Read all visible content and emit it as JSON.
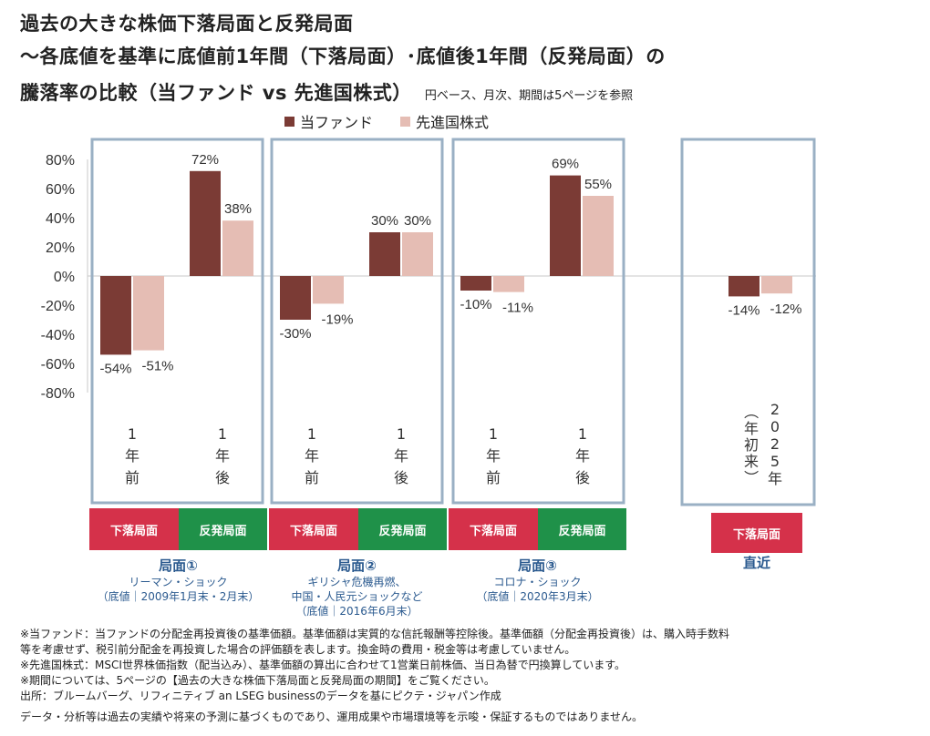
{
  "title": {
    "line1": "過去の大きな株価下落局面と反発局面",
    "line2": "～各底値を基準に底値前1年間（下落局面）･底値後1年間（反発局面）の",
    "line3": "騰落率の比較（当ファンド vs 先進国株式）",
    "note": "円ベース、月次、期間は5ページを参照"
  },
  "legend": {
    "fund": "当ファンド",
    "index": "先進国株式"
  },
  "colors": {
    "fund": "#7b3b35",
    "index": "#e5bdb4",
    "frame": "#9ab0c4",
    "down": "#d5314a",
    "up": "#1f9149",
    "phase_text": "#2b5a8f"
  },
  "chart_data": {
    "type": "bar",
    "ylim": [
      -80,
      80
    ],
    "y_ticks": [
      "80%",
      "60%",
      "40%",
      "20%",
      "0%",
      "-20%",
      "-40%",
      "-60%",
      "-80%"
    ],
    "series": [
      {
        "name": "当ファンド",
        "values": [
          -54,
          72,
          -30,
          30,
          -10,
          69,
          -14
        ]
      },
      {
        "name": "先進国株式",
        "values": [
          -51,
          38,
          -19,
          30,
          -11,
          55,
          -12
        ]
      }
    ],
    "fund_labels": [
      "-54%",
      "72%",
      "-30%",
      "30%",
      "-10%",
      "69%",
      "-14%"
    ],
    "index_labels": [
      "-51%",
      "38%",
      "-19%",
      "30%",
      "-11%",
      "55%",
      "-12%"
    ],
    "categories": [
      "1年前",
      "1年後",
      "1年前",
      "1年後",
      "1年前",
      "1年後",
      "2025年（年初来）"
    ]
  },
  "phases": [
    {
      "name": "局面①",
      "event": "リーマン・ショック",
      "bottom": "（底値｜2009年1月末・2月末）",
      "down_label": "下落局面",
      "up_label": "反発局面"
    },
    {
      "name": "局面②",
      "event": "ギリシャ危機再燃、",
      "event2": "中国・人民元ショックなど",
      "bottom": "（底値｜2016年6月末）",
      "down_label": "下落局面",
      "up_label": "反発局面"
    },
    {
      "name": "局面③",
      "event": "コロナ・ショック",
      "bottom": "（底値｜2020年3月末）",
      "down_label": "下落局面",
      "up_label": "反発局面"
    },
    {
      "name": "直近",
      "down_label": "下落局面"
    }
  ],
  "notes": [
    "※当ファンド：当ファンドの分配金再投資後の基準価額。基準価額は実質的な信託報酬等控除後。基準価額（分配金再投資後）は、購入時手数料",
    "等を考慮せず、税引前分配金を再投資した場合の評価額を表します。換金時の費用・税金等は考慮していません。",
    "※先進国株式：MSCI世界株価指数（配当込み）、基準価額の算出に合わせて1営業日前株価、当日為替で円換算しています。",
    "※期間については、5ページの【過去の大きな株価下落局面と反発局面の期間】をご覧ください。",
    "出所：ブルームバーグ、リフィニティブ an LSEG businessのデータを基にピクテ・ジャパン作成",
    "データ・分析等は過去の実績や将来の予測に基づくものであり、運用成果や市場環境等を示唆・保証するものではありません。"
  ]
}
